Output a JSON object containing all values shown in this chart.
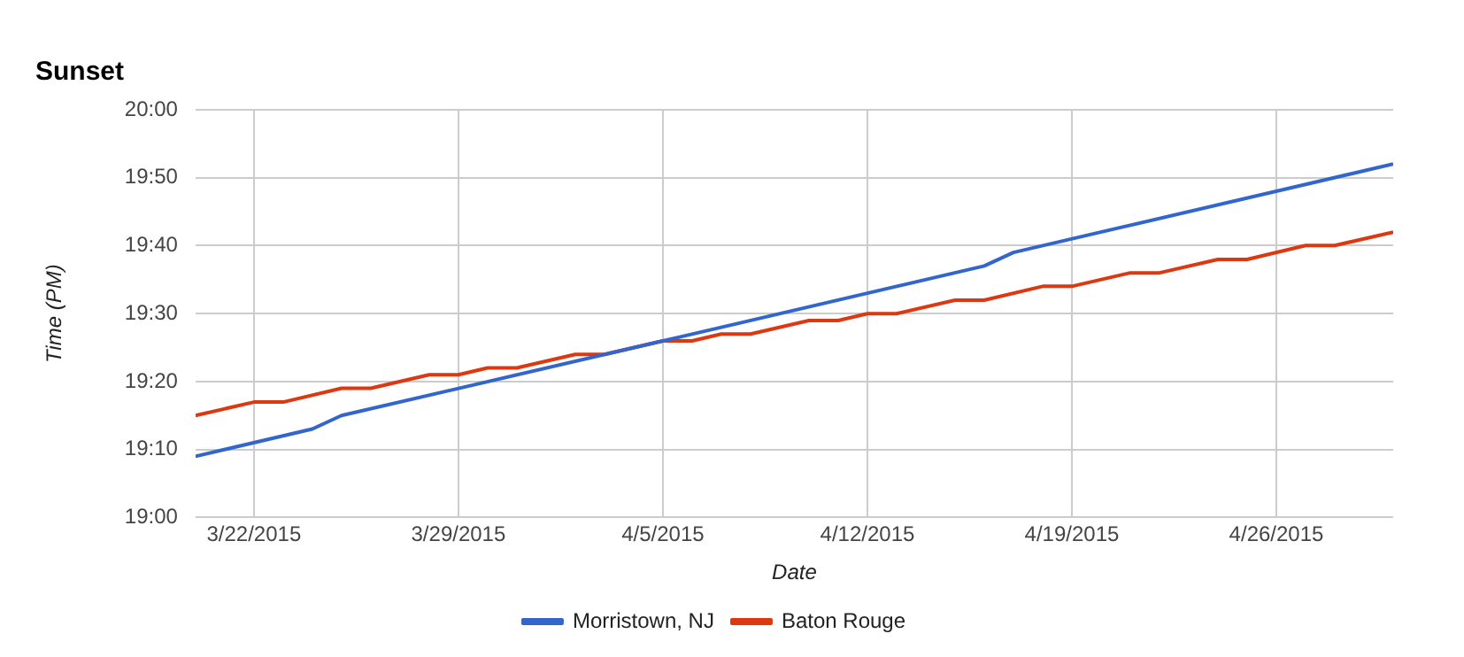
{
  "chart_data": {
    "type": "line",
    "title": "Sunset",
    "xlabel": "Date",
    "ylabel": "Time (PM)",
    "xlim": [
      "2015-03-20",
      "2015-04-30"
    ],
    "xticks": [
      {
        "value": "2015-03-22",
        "label": "3/22/2015"
      },
      {
        "value": "2015-03-29",
        "label": "3/29/2015"
      },
      {
        "value": "2015-04-05",
        "label": "4/5/2015"
      },
      {
        "value": "2015-04-12",
        "label": "4/12/2015"
      },
      {
        "value": "2015-04-19",
        "label": "4/19/2015"
      },
      {
        "value": "2015-04-26",
        "label": "4/26/2015"
      }
    ],
    "ylim": [
      19,
      20
    ],
    "yticks": [
      {
        "value": 19,
        "label": "19:00"
      },
      {
        "value": 19.1667,
        "label": "19:10"
      },
      {
        "value": 19.3333,
        "label": "19:20"
      },
      {
        "value": 19.5,
        "label": "19:30"
      },
      {
        "value": 19.6667,
        "label": "19:40"
      },
      {
        "value": 19.8333,
        "label": "19:50"
      },
      {
        "value": 20,
        "label": "20:00"
      }
    ],
    "grid": true,
    "legend": "bottom",
    "marker": "none",
    "line_style": "solid",
    "series": [
      {
        "name": "Morristown, NJ",
        "color": "#3366cc",
        "x": [
          "2015-03-20",
          "2015-03-24",
          "2015-03-25",
          "2015-04-05",
          "2015-04-16",
          "2015-04-17",
          "2015-04-30"
        ],
        "values": [
          19.15,
          19.217,
          19.25,
          19.433,
          19.617,
          19.65,
          19.867
        ]
      },
      {
        "name": "Baton Rouge",
        "color": "#dc3912",
        "x": [
          "2015-03-20",
          "2015-03-22",
          "2015-03-23",
          "2015-03-25",
          "2015-03-26",
          "2015-03-28",
          "2015-03-29",
          "2015-03-30",
          "2015-03-31",
          "2015-04-02",
          "2015-04-03",
          "2015-04-05",
          "2015-04-06",
          "2015-04-07",
          "2015-04-08",
          "2015-04-10",
          "2015-04-11",
          "2015-04-12",
          "2015-04-13",
          "2015-04-15",
          "2015-04-16",
          "2015-04-18",
          "2015-04-19",
          "2015-04-21",
          "2015-04-22",
          "2015-04-24",
          "2015-04-25",
          "2015-04-27",
          "2015-04-28",
          "2015-04-30"
        ],
        "values": [
          19.25,
          19.283,
          19.283,
          19.317,
          19.317,
          19.35,
          19.35,
          19.367,
          19.367,
          19.4,
          19.4,
          19.433,
          19.433,
          19.45,
          19.45,
          19.483,
          19.483,
          19.5,
          19.5,
          19.533,
          19.533,
          19.567,
          19.567,
          19.6,
          19.6,
          19.633,
          19.633,
          19.667,
          19.667,
          19.7
        ]
      }
    ]
  }
}
